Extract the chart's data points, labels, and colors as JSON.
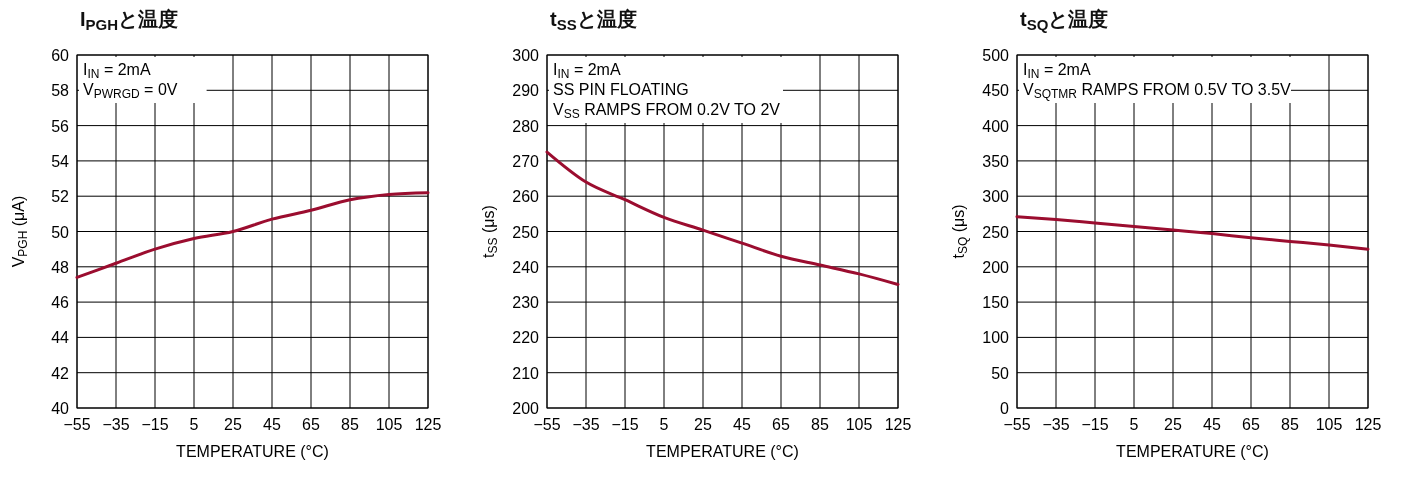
{
  "chart_data": [
    {
      "type": "line",
      "title": "I$_{PGH}$と温度",
      "xlabel": "TEMPERATURE (°C)",
      "ylabel": "V$_{PGH}$ (μA)",
      "annotations": [
        "I$_{IN}$ = 2mA",
        "V$_{PWRGD}$ = 0V"
      ],
      "x": [
        -55,
        -35,
        -15,
        5,
        25,
        45,
        65,
        85,
        105,
        125
      ],
      "series": [
        {
          "color": "#9b0d2f",
          "values": [
            47.4,
            48.2,
            49.0,
            49.6,
            50.0,
            50.7,
            51.2,
            51.8,
            52.1,
            52.2
          ]
        }
      ],
      "xlim": [
        -55,
        125
      ],
      "xticks": [
        {
          "value": -55,
          "label": "−55"
        },
        {
          "value": -35,
          "label": "−35"
        },
        {
          "value": -15,
          "label": "−15"
        },
        5,
        25,
        45,
        65,
        85,
        105,
        125
      ],
      "ylim": [
        40,
        60
      ],
      "yticks": [
        40,
        42,
        44,
        46,
        48,
        50,
        52,
        54,
        56,
        58,
        60
      ],
      "grid": true,
      "line_style": "solid"
    },
    {
      "type": "line",
      "title": "t$_{SS}$と温度",
      "xlabel": "TEMPERATURE (°C)",
      "ylabel": "t$_{SS}$ (μs)",
      "annotations": [
        "I$_{IN}$ = 2mA",
        "SS PIN FLOATING",
        "V$_{SS}$ RAMPS FROM 0.2V TO 2V"
      ],
      "x": [
        -55,
        -35,
        -15,
        5,
        25,
        45,
        65,
        85,
        105,
        125
      ],
      "series": [
        {
          "color": "#9b0d2f",
          "values": [
            272.5,
            264,
            259,
            254,
            250.4,
            246.7,
            243,
            240.5,
            238,
            235
          ]
        }
      ],
      "xlim": [
        -55,
        125
      ],
      "xticks": [
        {
          "value": -55,
          "label": "−55"
        },
        {
          "value": -35,
          "label": "−35"
        },
        {
          "value": -15,
          "label": "−15"
        },
        5,
        25,
        45,
        65,
        85,
        105,
        125
      ],
      "ylim": [
        200,
        300
      ],
      "yticks": [
        200,
        210,
        220,
        230,
        240,
        250,
        260,
        270,
        280,
        290,
        300
      ],
      "grid": true,
      "line_style": "solid"
    },
    {
      "type": "line",
      "title": "t$_{SQ}$と温度",
      "xlabel": "TEMPERATURE (°C)",
      "ylabel": "t$_{SQ}$ (μs)",
      "annotations": [
        "I$_{IN}$ = 2mA",
        "V$_{SQTMR}$ RAMPS FROM 0.5V TO 3.5V"
      ],
      "x": [
        -55,
        -35,
        -15,
        5,
        25,
        45,
        65,
        85,
        105,
        125
      ],
      "series": [
        {
          "color": "#9b0d2f",
          "values": [
            271,
            267,
            262,
            257,
            252,
            247,
            241,
            236,
            231,
            225
          ]
        }
      ],
      "xlim": [
        -55,
        125
      ],
      "xticks": [
        {
          "value": -55,
          "label": "−55"
        },
        {
          "value": -35,
          "label": "−35"
        },
        {
          "value": -15,
          "label": "−15"
        },
        5,
        25,
        45,
        65,
        85,
        105,
        125
      ],
      "ylim": [
        0,
        500
      ],
      "yticks": [
        0,
        50,
        100,
        150,
        200,
        250,
        300,
        350,
        400,
        450,
        500
      ],
      "grid": true,
      "line_style": "solid"
    }
  ]
}
